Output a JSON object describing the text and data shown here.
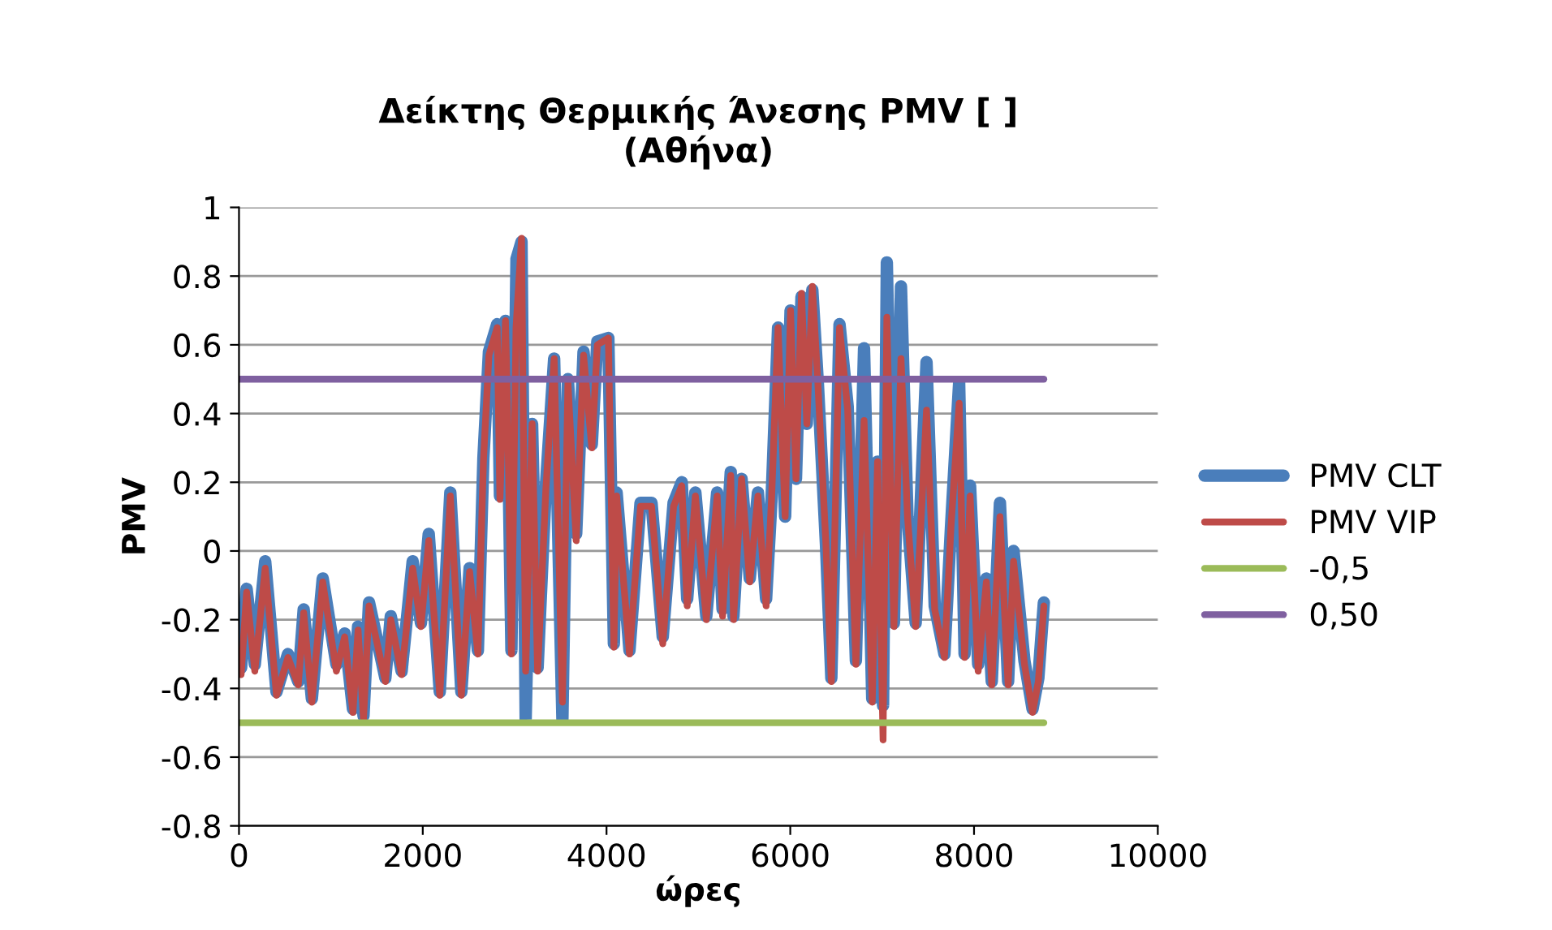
{
  "chart_data": {
    "type": "line",
    "title": "Δείκτης Θερμικής Άνεσης PMV [ ]\n(Αθήνα)",
    "xlabel": "ώρες",
    "ylabel": "PMV",
    "xlim": [
      0,
      10000
    ],
    "xticks": [
      0,
      2000,
      4000,
      6000,
      8000,
      10000
    ],
    "ylim": [
      -0.8,
      1
    ],
    "yticks": [
      -0.8,
      -0.6,
      -0.4,
      -0.2,
      0,
      0.2,
      0.4,
      0.6,
      0.8,
      1
    ],
    "grid": "y",
    "legend": "right",
    "marker": "none",
    "line_style": "solid",
    "series": [
      {
        "name": "PMV CLT",
        "color": "#4a7ebb",
        "x": [
          23,
          83,
          172,
          285,
          408,
          533,
          645,
          704,
          793,
          911,
          1060,
          1150,
          1240,
          1296,
          1355,
          1415,
          1593,
          1652,
          1770,
          1890,
          1980,
          2065,
          2185,
          2300,
          2420,
          2510,
          2600,
          2660,
          2720,
          2810,
          2840,
          2900,
          2925,
          2965,
          3020,
          3075,
          3120,
          3190,
          3250,
          3340,
          3430,
          3520,
          3580,
          3670,
          3750,
          3840,
          3900,
          4020,
          4080,
          4110,
          4250,
          4370,
          4490,
          4612,
          4730,
          4819,
          4878,
          4967,
          5086,
          5204,
          5263,
          5352,
          5382,
          5470,
          5559,
          5648,
          5737,
          5796,
          5867,
          5944,
          6003,
          6062,
          6122,
          6180,
          6240,
          6300,
          6388,
          6447,
          6536,
          6625,
          6714,
          6803,
          6892,
          6950,
          7010,
          7051,
          7128,
          7205,
          7276,
          7365,
          7483,
          7572,
          7678,
          7749,
          7838,
          7897,
          7957,
          8045,
          8134,
          8193,
          8282,
          8371,
          8430,
          8549,
          8637,
          8700,
          8760
        ],
        "values": [
          -0.34,
          -0.11,
          -0.33,
          -0.03,
          -0.41,
          -0.3,
          -0.38,
          -0.17,
          -0.43,
          -0.08,
          -0.33,
          -0.24,
          -0.46,
          -0.22,
          -0.48,
          -0.15,
          -0.37,
          -0.19,
          -0.35,
          -0.03,
          -0.21,
          0.05,
          -0.41,
          0.17,
          -0.41,
          -0.05,
          -0.29,
          0.27,
          0.58,
          0.66,
          0.16,
          0.67,
          0.39,
          -0.29,
          0.85,
          0.9,
          -0.49,
          0.37,
          -0.34,
          0.19,
          0.56,
          -0.49,
          0.5,
          0.05,
          0.58,
          0.31,
          0.61,
          0.62,
          -0.27,
          0.17,
          -0.29,
          0.14,
          0.14,
          -0.25,
          0.14,
          0.2,
          -0.14,
          0.17,
          -0.19,
          0.17,
          -0.17,
          0.23,
          -0.19,
          0.21,
          -0.08,
          0.17,
          -0.14,
          0.15,
          0.65,
          0.1,
          0.7,
          0.21,
          0.74,
          0.37,
          0.76,
          0.49,
          0.02,
          -0.37,
          0.66,
          0.42,
          -0.32,
          0.59,
          -0.43,
          0.26,
          -0.45,
          0.84,
          -0.21,
          0.77,
          0.1,
          -0.21,
          0.55,
          -0.16,
          -0.3,
          0.07,
          0.49,
          -0.3,
          0.19,
          -0.33,
          -0.08,
          -0.38,
          0.14,
          -0.38,
          0,
          -0.32,
          -0.46,
          -0.37,
          -0.15
        ]
      },
      {
        "name": "PMV VIP",
        "color": "#be4b48",
        "x": [
          23,
          83,
          172,
          285,
          408,
          533,
          645,
          704,
          793,
          911,
          1060,
          1150,
          1240,
          1296,
          1355,
          1415,
          1593,
          1652,
          1770,
          1890,
          1980,
          2065,
          2185,
          2300,
          2420,
          2510,
          2600,
          2660,
          2720,
          2810,
          2840,
          2900,
          2925,
          2965,
          3015,
          3075,
          3120,
          3190,
          3250,
          3340,
          3430,
          3520,
          3580,
          3670,
          3750,
          3840,
          3900,
          4020,
          4080,
          4110,
          4250,
          4370,
          4490,
          4612,
          4730,
          4819,
          4878,
          4967,
          5086,
          5204,
          5263,
          5352,
          5382,
          5470,
          5559,
          5648,
          5737,
          5796,
          5867,
          5944,
          6003,
          6062,
          6122,
          6180,
          6240,
          6300,
          6388,
          6447,
          6536,
          6625,
          6714,
          6803,
          6892,
          6950,
          7010,
          7051,
          7128,
          7205,
          7276,
          7365,
          7483,
          7572,
          7678,
          7749,
          7838,
          7897,
          7957,
          8045,
          8134,
          8193,
          8282,
          8371,
          8430,
          8549,
          8637,
          8700,
          8760
        ],
        "values": [
          -0.36,
          -0.12,
          -0.35,
          -0.05,
          -0.42,
          -0.31,
          -0.39,
          -0.18,
          -0.44,
          -0.09,
          -0.35,
          -0.25,
          -0.47,
          -0.23,
          -0.49,
          -0.16,
          -0.38,
          -0.2,
          -0.36,
          -0.05,
          -0.22,
          0.03,
          -0.42,
          0.16,
          -0.42,
          -0.06,
          -0.3,
          0.26,
          0.57,
          0.65,
          0.15,
          0.67,
          0.38,
          -0.3,
          0.65,
          0.91,
          -0.35,
          0.37,
          -0.35,
          0.18,
          0.56,
          -0.44,
          0.49,
          0.03,
          0.57,
          0.3,
          0.6,
          0.62,
          -0.28,
          0.16,
          -0.3,
          0.13,
          0.13,
          -0.27,
          0.13,
          0.19,
          -0.16,
          0.16,
          -0.2,
          0.16,
          -0.19,
          0.22,
          -0.2,
          0.21,
          -0.09,
          0.16,
          -0.16,
          0.15,
          0.65,
          0.1,
          0.7,
          0.21,
          0.75,
          0.37,
          0.77,
          0.49,
          0.02,
          -0.38,
          0.65,
          0.41,
          -0.33,
          0.38,
          -0.44,
          0.26,
          -0.55,
          0.68,
          -0.22,
          0.56,
          0.1,
          -0.22,
          0.41,
          -0.17,
          -0.31,
          0.07,
          0.43,
          -0.31,
          0.16,
          -0.35,
          -0.09,
          -0.39,
          0.1,
          -0.39,
          -0.03,
          -0.33,
          -0.47,
          -0.38,
          -0.16
        ]
      },
      {
        "name": "-0,5",
        "color": "#9bbb59",
        "x": [
          0,
          8760
        ],
        "values": [
          -0.5,
          -0.5
        ]
      },
      {
        "name": "0,50",
        "color": "#7f60a0",
        "x": [
          0,
          8760
        ],
        "values": [
          0.5,
          0.5
        ]
      }
    ]
  }
}
